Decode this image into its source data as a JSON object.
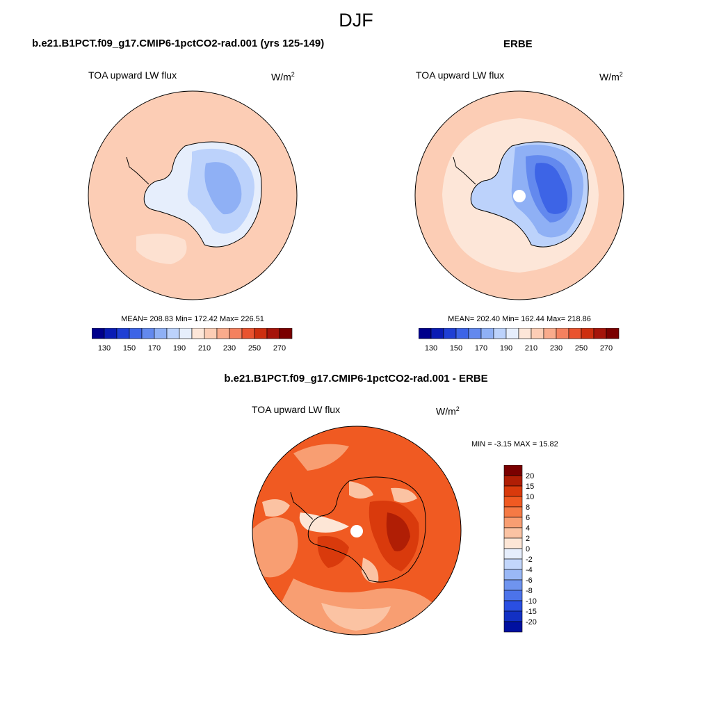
{
  "page": {
    "title": "DJF"
  },
  "panels": {
    "left": {
      "header": "b.e21.B1PCT.f09_g17.CMIP6-1pctCO2-rad.001 (yrs 125-149)",
      "variable": "TOA upward LW flux",
      "units_base": "W/m",
      "units_exp": "2",
      "stats": "MEAN= 208.83  Min= 172.42  Max= 226.51"
    },
    "right": {
      "header": "ERBE",
      "variable": "TOA upward LW flux",
      "units_base": "W/m",
      "units_exp": "2",
      "stats": "MEAN= 202.40  Min= 162.44  Max= 218.86"
    },
    "bottom": {
      "header": "b.e21.B1PCT.f09_g17.CMIP6-1pctCO2-rad.001 - ERBE",
      "variable": "TOA upward LW flux",
      "units_base": "W/m",
      "units_exp": "2",
      "stats": "MIN =  -3.15 MAX =  15.82"
    }
  },
  "colorbars": {
    "horizontal": {
      "colors": [
        "#00008b",
        "#0a1cb4",
        "#1f3fd4",
        "#3d64e6",
        "#6389ee",
        "#8fb0f5",
        "#bcd2fb",
        "#e6eefc",
        "#fde6d8",
        "#fccdb5",
        "#f9ab8c",
        "#f4815f",
        "#e9532f",
        "#cd2f0f",
        "#a5140a",
        "#7a0000"
      ],
      "labels": [
        "130",
        "150",
        "170",
        "190",
        "210",
        "230",
        "250",
        "270"
      ]
    },
    "vertical": {
      "colors": [
        "#7a0000",
        "#b01e05",
        "#d93a0c",
        "#f05a22",
        "#f57a45",
        "#f89e72",
        "#fbc3a3",
        "#fde6d6",
        "#e6eefc",
        "#c2d6fb",
        "#9ab8f6",
        "#6f94ef",
        "#4c73ea",
        "#2a4fe2",
        "#1230c4",
        "#0010a0"
      ],
      "labels": [
        "20",
        "15",
        "10",
        "8",
        "6",
        "4",
        "2",
        "0",
        "-2",
        "-4",
        "-6",
        "-8",
        "-10",
        "-15",
        "-20"
      ]
    }
  },
  "map_colors": {
    "model_ocean": "#fccdb5",
    "model_ice_1": "#e6eefc",
    "model_ice_2": "#bcd2fb",
    "model_ice_3": "#8fb0f5",
    "obs_ocean": "#fde6d8",
    "obs_ocean_2": "#fccdb5",
    "obs_ice_1": "#bcd2fb",
    "obs_ice_2": "#8fb0f5",
    "obs_ice_3": "#6389ee",
    "obs_ice_4": "#3d64e6",
    "diff_base": "#f05a22",
    "diff_light": "#f89e72",
    "diff_pale": "#fbc3a3",
    "diff_dark": "#d93a0c",
    "diff_darker": "#b01e05",
    "diff_white": "#fde6d6",
    "missing": "#ffffff",
    "coast": "#000000"
  }
}
